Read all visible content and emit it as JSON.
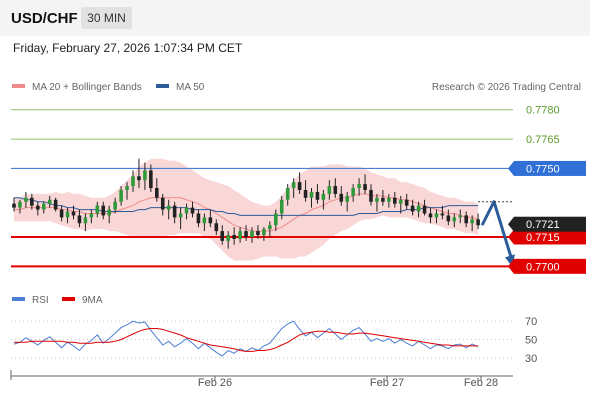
{
  "header": {
    "symbol": "USD/CHF",
    "timeframe": "30 MIN"
  },
  "datetime": "Friday, February 27, 2026 1:07:34 PM CET",
  "chart_data": {
    "type": "candlestick",
    "legend": [
      {
        "label": "MA 20 + Bollinger Bands",
        "color": "#f08a8a"
      },
      {
        "label": "MA 50",
        "color": "#2d5c9a"
      }
    ],
    "copyright": "Research © 2026 Trading Central",
    "y_range": [
      0.7692,
      0.7787
    ],
    "x_labels": [
      "Feb 26",
      "Feb 27",
      "Feb 28"
    ],
    "current_price": "0.7721",
    "levels": [
      {
        "label": "0.7780",
        "value": 0.778,
        "color": "#8cc26a",
        "text_color": "#5a9a2c",
        "boxed": false
      },
      {
        "label": "0.7765",
        "value": 0.7765,
        "color": "#8cc26a",
        "text_color": "#5a9a2c",
        "boxed": false
      },
      {
        "label": "0.7750",
        "value": 0.775,
        "color": "#4a7fd4",
        "text_color": "#ffffff",
        "boxed": true,
        "box_color": "#2f6fd6"
      },
      {
        "label": "0.7715",
        "value": 0.7715,
        "color": "#e00000",
        "text_color": "#ffffff",
        "boxed": true,
        "box_color": "#e00000"
      },
      {
        "label": "0.7700",
        "value": 0.77,
        "color": "#e00000",
        "text_color": "#ffffff",
        "boxed": true,
        "box_color": "#e00000"
      }
    ],
    "forecast": {
      "from": 0.7721,
      "peak": 0.7733,
      "target": 0.77,
      "color": "#2d5c9a"
    },
    "candles": [
      [
        0.7732,
        0.7735,
        0.7728,
        0.773
      ],
      [
        0.773,
        0.7734,
        0.7727,
        0.7733
      ],
      [
        0.7733,
        0.7738,
        0.773,
        0.7735
      ],
      [
        0.7735,
        0.7737,
        0.7729,
        0.7731
      ],
      [
        0.7731,
        0.7733,
        0.7726,
        0.7729
      ],
      [
        0.7729,
        0.7733,
        0.7727,
        0.7732
      ],
      [
        0.7732,
        0.7736,
        0.773,
        0.7734
      ],
      [
        0.7734,
        0.7735,
        0.7728,
        0.7729
      ],
      [
        0.7729,
        0.7731,
        0.7723,
        0.7725
      ],
      [
        0.7725,
        0.773,
        0.7722,
        0.7728
      ],
      [
        0.7728,
        0.7731,
        0.7724,
        0.7726
      ],
      [
        0.7726,
        0.7729,
        0.772,
        0.7722
      ],
      [
        0.7722,
        0.7727,
        0.7718,
        0.7725
      ],
      [
        0.7725,
        0.7729,
        0.7722,
        0.7727
      ],
      [
        0.7727,
        0.7733,
        0.7725,
        0.7731
      ],
      [
        0.7731,
        0.7733,
        0.7724,
        0.7726
      ],
      [
        0.7726,
        0.7731,
        0.7722,
        0.7729
      ],
      [
        0.7729,
        0.7735,
        0.7727,
        0.7733
      ],
      [
        0.7733,
        0.7741,
        0.7731,
        0.7739
      ],
      [
        0.7739,
        0.7743,
        0.7734,
        0.7741
      ],
      [
        0.7741,
        0.7749,
        0.7738,
        0.7746
      ],
      [
        0.7746,
        0.7755,
        0.774,
        0.7744
      ],
      [
        0.7744,
        0.7753,
        0.7739,
        0.7749
      ],
      [
        0.7749,
        0.7752,
        0.7738,
        0.774
      ],
      [
        0.774,
        0.7745,
        0.7733,
        0.7735
      ],
      [
        0.7735,
        0.7737,
        0.7726,
        0.7729
      ],
      [
        0.7729,
        0.7734,
        0.7724,
        0.7731
      ],
      [
        0.7731,
        0.7733,
        0.7722,
        0.7725
      ],
      [
        0.7725,
        0.773,
        0.7719,
        0.7727
      ],
      [
        0.7727,
        0.7732,
        0.7724,
        0.773
      ],
      [
        0.773,
        0.7733,
        0.7725,
        0.7727
      ],
      [
        0.7727,
        0.7729,
        0.772,
        0.7722
      ],
      [
        0.7722,
        0.7727,
        0.7718,
        0.7725
      ],
      [
        0.7725,
        0.7729,
        0.772,
        0.7722
      ],
      [
        0.7722,
        0.7724,
        0.7716,
        0.7718
      ],
      [
        0.7718,
        0.7721,
        0.7711,
        0.7713
      ],
      [
        0.7713,
        0.7718,
        0.7709,
        0.7716
      ],
      [
        0.7716,
        0.772,
        0.7711,
        0.7714
      ],
      [
        0.7714,
        0.772,
        0.7712,
        0.7718
      ],
      [
        0.7718,
        0.7721,
        0.7713,
        0.7715
      ],
      [
        0.7715,
        0.772,
        0.7712,
        0.7718
      ],
      [
        0.7718,
        0.7721,
        0.7714,
        0.7716
      ],
      [
        0.7716,
        0.772,
        0.7713,
        0.7719
      ],
      [
        0.7719,
        0.7723,
        0.7715,
        0.7721
      ],
      [
        0.7721,
        0.7729,
        0.7718,
        0.7727
      ],
      [
        0.7727,
        0.7736,
        0.7724,
        0.7734
      ],
      [
        0.7734,
        0.7742,
        0.7731,
        0.774
      ],
      [
        0.774,
        0.7745,
        0.7735,
        0.7743
      ],
      [
        0.7743,
        0.7748,
        0.7737,
        0.7739
      ],
      [
        0.7739,
        0.7744,
        0.7733,
        0.7735
      ],
      [
        0.7735,
        0.774,
        0.773,
        0.7738
      ],
      [
        0.7738,
        0.7742,
        0.7732,
        0.7734
      ],
      [
        0.7734,
        0.7739,
        0.7729,
        0.7737
      ],
      [
        0.7737,
        0.7744,
        0.7734,
        0.7741
      ],
      [
        0.7741,
        0.7745,
        0.7735,
        0.7737
      ],
      [
        0.7737,
        0.7741,
        0.7731,
        0.7733
      ],
      [
        0.7733,
        0.7738,
        0.7728,
        0.7736
      ],
      [
        0.7736,
        0.7742,
        0.7733,
        0.774
      ],
      [
        0.774,
        0.7745,
        0.7736,
        0.7742
      ],
      [
        0.7742,
        0.7747,
        0.7737,
        0.7739
      ],
      [
        0.7739,
        0.7742,
        0.7731,
        0.7733
      ],
      [
        0.7733,
        0.7737,
        0.7728,
        0.7735
      ],
      [
        0.7735,
        0.7739,
        0.7731,
        0.7733
      ],
      [
        0.7733,
        0.7737,
        0.773,
        0.7735
      ],
      [
        0.7735,
        0.7738,
        0.773,
        0.7732
      ],
      [
        0.7732,
        0.7736,
        0.7727,
        0.7734
      ],
      [
        0.7734,
        0.7737,
        0.7729,
        0.7731
      ],
      [
        0.7731,
        0.7734,
        0.7726,
        0.7728
      ],
      [
        0.7728,
        0.7733,
        0.7725,
        0.7731
      ],
      [
        0.7731,
        0.7734,
        0.7726,
        0.7727
      ],
      [
        0.7727,
        0.773,
        0.7722,
        0.7725
      ],
      [
        0.7725,
        0.7729,
        0.7722,
        0.7727
      ],
      [
        0.7727,
        0.7731,
        0.7724,
        0.7726
      ],
      [
        0.7726,
        0.7729,
        0.7721,
        0.7723
      ],
      [
        0.7723,
        0.7727,
        0.772,
        0.7725
      ],
      [
        0.7725,
        0.7729,
        0.7722,
        0.7726
      ],
      [
        0.7726,
        0.7728,
        0.772,
        0.7722
      ],
      [
        0.7722,
        0.7726,
        0.7718,
        0.7724
      ],
      [
        0.7724,
        0.7727,
        0.7719,
        0.7721
      ]
    ],
    "ma20": [
      0.7729,
      0.7729,
      0.773,
      0.773,
      0.773,
      0.773,
      0.773,
      0.773,
      0.7729,
      0.7729,
      0.7728,
      0.7728,
      0.7727,
      0.7727,
      0.7727,
      0.7727,
      0.7727,
      0.7728,
      0.7729,
      0.773,
      0.7731,
      0.7733,
      0.7734,
      0.7735,
      0.7735,
      0.7735,
      0.7735,
      0.7735,
      0.7735,
      0.7734,
      0.7733,
      0.7732,
      0.773,
      0.7729,
      0.7727,
      0.7725,
      0.7723,
      0.7721,
      0.772,
      0.7719,
      0.7718,
      0.7718,
      0.7718,
      0.7718,
      0.7719,
      0.772,
      0.7722,
      0.7724,
      0.7726,
      0.7727,
      0.7729,
      0.773,
      0.7731,
      0.7733,
      0.7734,
      0.7735,
      0.7735,
      0.7736,
      0.7737,
      0.7737,
      0.7736,
      0.7736,
      0.7736,
      0.7735,
      0.7735,
      0.7734,
      0.7734,
      0.7733,
      0.7732,
      0.7731,
      0.773,
      0.7729,
      0.7728,
      0.7727,
      0.7727,
      0.7726,
      0.7725,
      0.7725,
      0.7724
    ],
    "bb_width": [
      0.0006,
      0.0006,
      0.0007,
      0.0007,
      0.0007,
      0.0007,
      0.0007,
      0.0008,
      0.0008,
      0.0009,
      0.0009,
      0.0009,
      0.0009,
      0.0008,
      0.0008,
      0.0008,
      0.0009,
      0.001,
      0.0012,
      0.0014,
      0.0016,
      0.0018,
      0.0019,
      0.002,
      0.002,
      0.002,
      0.0019,
      0.0019,
      0.0018,
      0.0017,
      0.0016,
      0.0015,
      0.0015,
      0.0015,
      0.0016,
      0.0017,
      0.0018,
      0.0018,
      0.0017,
      0.0016,
      0.0015,
      0.0014,
      0.0013,
      0.0013,
      0.0014,
      0.0016,
      0.0018,
      0.002,
      0.0021,
      0.0022,
      0.0022,
      0.0021,
      0.002,
      0.0019,
      0.0018,
      0.0017,
      0.0016,
      0.0015,
      0.0014,
      0.0013,
      0.0012,
      0.0011,
      0.001,
      0.001,
      0.001,
      0.0009,
      0.0009,
      0.0009,
      0.0009,
      0.0009,
      0.0008,
      0.0008,
      0.0008,
      0.0008,
      0.0008,
      0.0008,
      0.0008,
      0.0008,
      0.0008
    ],
    "ma50": [
      0.7735,
      0.7735,
      0.7734,
      0.7734,
      0.7733,
      0.7733,
      0.7732,
      0.7731,
      0.7731,
      0.773,
      0.773,
      0.7729,
      0.7729,
      0.7729,
      0.7729,
      0.7728,
      0.7728,
      0.7728,
      0.7728,
      0.7728,
      0.7728,
      0.7729,
      0.7729,
      0.773,
      0.773,
      0.773,
      0.773,
      0.773,
      0.773,
      0.773,
      0.7729,
      0.7729,
      0.7729,
      0.7729,
      0.7728,
      0.7728,
      0.7727,
      0.7727,
      0.7726,
      0.7726,
      0.7726,
      0.7726,
      0.7726,
      0.7726,
      0.7726,
      0.7726,
      0.7726,
      0.7726,
      0.7726,
      0.7726,
      0.7726,
      0.7726,
      0.7726,
      0.7726,
      0.7726,
      0.7726,
      0.7726,
      0.7726,
      0.7727,
      0.7727,
      0.7727,
      0.7727,
      0.7728,
      0.7728,
      0.7728,
      0.7728,
      0.7729,
      0.7729,
      0.7729,
      0.773,
      0.773,
      0.773,
      0.773,
      0.7731,
      0.7731,
      0.7731,
      0.7731,
      0.7731,
      0.7731
    ],
    "rsi_panel": {
      "legend": [
        {
          "label": "RSI",
          "color": "#4a7fd4"
        },
        {
          "label": "9MA",
          "color": "#e00000"
        }
      ],
      "y_range": [
        20,
        80
      ],
      "y_ticks": [
        "70",
        "50",
        "30"
      ],
      "rsi": [
        45,
        47,
        52,
        48,
        44,
        49,
        53,
        47,
        41,
        47,
        43,
        38,
        45,
        49,
        55,
        46,
        51,
        57,
        63,
        66,
        70,
        68,
        69,
        60,
        52,
        44,
        48,
        42,
        46,
        51,
        46,
        40,
        46,
        41,
        36,
        32,
        38,
        35,
        40,
        37,
        41,
        38,
        43,
        46,
        54,
        62,
        67,
        70,
        61,
        54,
        58,
        52,
        57,
        62,
        56,
        50,
        55,
        60,
        63,
        56,
        48,
        51,
        48,
        51,
        46,
        50,
        46,
        43,
        48,
        44,
        40,
        44,
        43,
        40,
        44,
        45,
        41,
        45,
        42
      ],
      "rsi_ma": [
        47,
        47,
        47,
        48,
        48,
        48,
        48,
        48,
        48,
        47,
        47,
        46,
        46,
        46,
        47,
        47,
        47,
        48,
        50,
        53,
        56,
        59,
        61,
        62,
        62,
        61,
        59,
        57,
        55,
        52,
        50,
        48,
        46,
        44,
        43,
        42,
        41,
        40,
        38,
        37,
        37,
        38,
        38,
        39,
        41,
        44,
        47,
        51,
        55,
        57,
        58,
        59,
        59,
        58,
        58,
        57,
        56,
        56,
        57,
        57,
        56,
        55,
        54,
        53,
        52,
        51,
        50,
        49,
        48,
        47,
        46,
        45,
        44,
        44,
        43,
        43,
        43,
        43,
        43
      ]
    }
  }
}
